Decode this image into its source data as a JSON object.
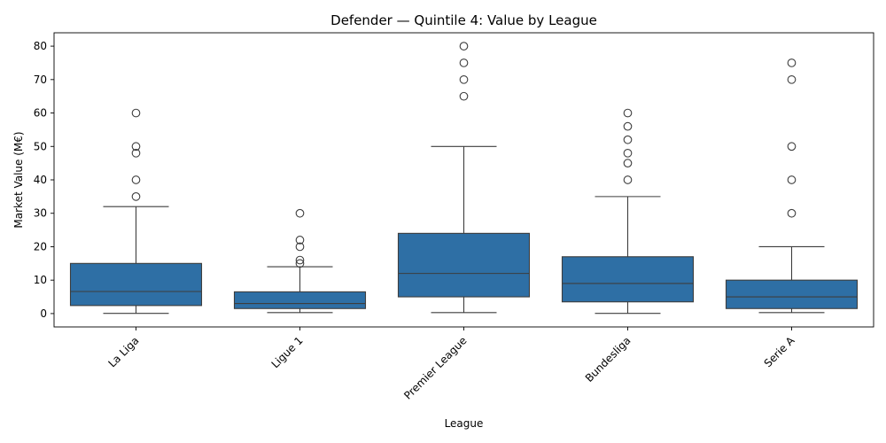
{
  "chart_data": {
    "type": "box",
    "title": "Defender — Quintile 4: Value by League",
    "xlabel": "League",
    "ylabel": "Market Value (M€)",
    "ylim": [
      -4,
      84
    ],
    "yticks": [
      0,
      10,
      20,
      30,
      40,
      50,
      60,
      70,
      80
    ],
    "box_color": "#2e6fa5",
    "grid": false,
    "legend": "none",
    "categories": [
      "La Liga",
      "Ligue 1",
      "Premier League",
      "Bundesliga",
      "Serie A"
    ],
    "boxes": [
      {
        "category": "La Liga",
        "whisker_low": 0.05,
        "q1": 2.4,
        "median": 6.6,
        "q3": 15,
        "whisker_high": 32,
        "outliers": [
          35,
          40,
          48,
          50,
          60
        ]
      },
      {
        "category": "Ligue 1",
        "whisker_low": 0.3,
        "q1": 1.5,
        "median": 3,
        "q3": 6.5,
        "whisker_high": 14,
        "outliers": [
          15,
          16,
          20,
          22,
          30
        ]
      },
      {
        "category": "Premier League",
        "whisker_low": 0.3,
        "q1": 5,
        "median": 12,
        "q3": 24,
        "whisker_high": 50,
        "outliers": [
          65,
          70,
          75,
          80
        ]
      },
      {
        "category": "Bundesliga",
        "whisker_low": 0.05,
        "q1": 3.5,
        "median": 9,
        "q3": 17,
        "whisker_high": 35,
        "outliers": [
          40,
          45,
          48,
          52,
          56,
          60
        ]
      },
      {
        "category": "Serie A",
        "whisker_low": 0.3,
        "q1": 1.5,
        "median": 5,
        "q3": 10,
        "whisker_high": 20,
        "outliers": [
          30,
          40,
          50,
          70,
          75
        ]
      }
    ]
  }
}
